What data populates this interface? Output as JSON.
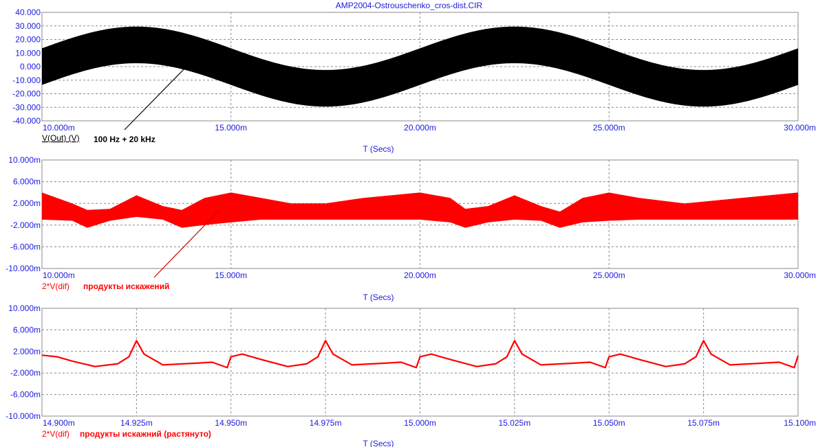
{
  "window": {
    "title": "AMP2004-Ostrouschenko_cros-dist.CIR"
  },
  "colors": {
    "axis_text": "#1a1ae0",
    "grid": "#8a8a8a",
    "trace_black": "#000000",
    "trace_red": "#ff0000"
  },
  "chart_data": [
    {
      "type": "line",
      "series": [
        {
          "name": "V(Out) (V)",
          "color": "#000000"
        }
      ],
      "x_tick_labels": [
        "10.000m",
        "15.000m",
        "20.000m",
        "25.000m",
        "30.000m"
      ],
      "y_tick_labels": [
        "40.000",
        "30.000",
        "20.000",
        "10.000",
        "0.000",
        "-10.000",
        "-20.000",
        "-30.000",
        "-40.000"
      ],
      "xlabel": "T (Secs)",
      "xlim": [
        0.01,
        0.03
      ],
      "ylim": [
        -40,
        40
      ],
      "low_freq_hz": 100,
      "low_amplitude": 16,
      "high_freq_hz": 20000,
      "high_amplitude": 13.5,
      "annotation": "100 Hz + 20 kHz",
      "grid": true
    },
    {
      "type": "line",
      "series": [
        {
          "name": "2*V(dif)",
          "color": "#ff0000"
        }
      ],
      "x_tick_labels": [
        "10.000m",
        "15.000m",
        "20.000m",
        "25.000m",
        "30.000m"
      ],
      "y_tick_labels": [
        "10.000m",
        "6.000m",
        "2.000m",
        "-2.000m",
        "-6.000m",
        "-10.000m"
      ],
      "xlabel": "T (Secs)",
      "xlim": [
        0.01,
        0.03
      ],
      "ylim": [
        -0.01,
        0.01
      ],
      "annotation": "продукты искажений",
      "envelope_points": [
        [
          0.01,
          -0.001,
          0.004
        ],
        [
          0.0108,
          -0.0012,
          0.002
        ],
        [
          0.0112,
          -0.0025,
          0.0008
        ],
        [
          0.0118,
          -0.0012,
          0.001
        ],
        [
          0.0125,
          -0.0005,
          0.0035
        ],
        [
          0.0132,
          -0.001,
          0.0015
        ],
        [
          0.0137,
          -0.0025,
          0.0008
        ],
        [
          0.0143,
          -0.002,
          0.003
        ],
        [
          0.015,
          -0.0015,
          0.004
        ],
        [
          0.0158,
          -0.001,
          0.003
        ],
        [
          0.0166,
          -0.001,
          0.002
        ],
        [
          0.0175,
          -0.001,
          0.002
        ],
        [
          0.0185,
          -0.001,
          0.003
        ],
        [
          0.02,
          -0.001,
          0.004
        ],
        [
          0.0208,
          -0.0015,
          0.003
        ],
        [
          0.0212,
          -0.0025,
          0.001
        ],
        [
          0.0218,
          -0.0015,
          0.0015
        ],
        [
          0.0225,
          -0.001,
          0.0035
        ],
        [
          0.0232,
          -0.0012,
          0.0015
        ],
        [
          0.0237,
          -0.0025,
          0.0005
        ],
        [
          0.0243,
          -0.0015,
          0.003
        ],
        [
          0.025,
          -0.0012,
          0.004
        ],
        [
          0.0258,
          -0.001,
          0.003
        ],
        [
          0.027,
          -0.001,
          0.002
        ],
        [
          0.0285,
          -0.001,
          0.003
        ],
        [
          0.03,
          -0.001,
          0.004
        ]
      ],
      "grid": true
    },
    {
      "type": "line",
      "series": [
        {
          "name": "2*V(dif)",
          "color": "#ff0000"
        }
      ],
      "x_tick_labels": [
        "14.900m",
        "14.925m",
        "14.950m",
        "14.975m",
        "15.000m",
        "15.025m",
        "15.050m",
        "15.075m",
        "15.100m"
      ],
      "y_tick_labels": [
        "10.000m",
        "6.000m",
        "2.000m",
        "-2.000m",
        "-6.000m",
        "-10.000m"
      ],
      "xlabel": "T (Secs)",
      "xlim": [
        0.0149,
        0.0151
      ],
      "ylim": [
        -0.01,
        0.01
      ],
      "annotation": "продукты искажний (растянуто)",
      "points": [
        [
          0.0149,
          0.0013
        ],
        [
          0.014904,
          0.001
        ],
        [
          0.014908,
          0.0002
        ],
        [
          0.014914,
          -0.0008
        ],
        [
          0.01492,
          -0.0003
        ],
        [
          0.014923,
          0.001
        ],
        [
          0.014925,
          0.004
        ],
        [
          0.014927,
          0.0015
        ],
        [
          0.014932,
          -0.0005
        ],
        [
          0.01494,
          -0.0002
        ],
        [
          0.014945,
          0.0
        ],
        [
          0.014949,
          -0.001
        ],
        [
          0.01495,
          0.001
        ],
        [
          0.014953,
          0.0015
        ],
        [
          0.014958,
          0.0005
        ],
        [
          0.014965,
          -0.0008
        ],
        [
          0.01497,
          -0.0003
        ],
        [
          0.014973,
          0.001
        ],
        [
          0.014975,
          0.004
        ],
        [
          0.014977,
          0.0015
        ],
        [
          0.014982,
          -0.0005
        ],
        [
          0.01499,
          -0.0002
        ],
        [
          0.014995,
          0.0
        ],
        [
          0.014999,
          -0.001
        ],
        [
          0.015,
          0.001
        ],
        [
          0.015003,
          0.0015
        ],
        [
          0.015008,
          0.0005
        ],
        [
          0.015015,
          -0.0008
        ],
        [
          0.01502,
          -0.0003
        ],
        [
          0.015023,
          0.001
        ],
        [
          0.015025,
          0.004
        ],
        [
          0.015027,
          0.0015
        ],
        [
          0.015032,
          -0.0005
        ],
        [
          0.01504,
          -0.0002
        ],
        [
          0.015045,
          0.0
        ],
        [
          0.015049,
          -0.001
        ],
        [
          0.01505,
          0.001
        ],
        [
          0.015053,
          0.0015
        ],
        [
          0.015058,
          0.0005
        ],
        [
          0.015065,
          -0.0008
        ],
        [
          0.01507,
          -0.0003
        ],
        [
          0.015073,
          0.001
        ],
        [
          0.015075,
          0.004
        ],
        [
          0.015077,
          0.0015
        ],
        [
          0.015082,
          -0.0005
        ],
        [
          0.01509,
          -0.0002
        ],
        [
          0.015095,
          0.0
        ],
        [
          0.015099,
          -0.001
        ],
        [
          0.0151,
          0.0012
        ]
      ],
      "grid": true
    }
  ]
}
